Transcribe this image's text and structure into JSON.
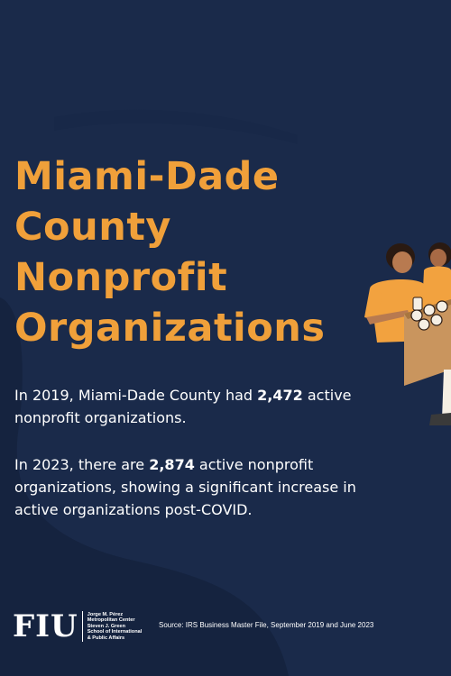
{
  "title": {
    "line1": "Miami-Dade",
    "line2": "County",
    "line3": "Nonprofit",
    "line4": "Organizations"
  },
  "paragraphs": {
    "p1_before": "In 2019, Miami-Dade County had ",
    "p1_value": "2,472",
    "p1_after": " active nonprofit organizations.",
    "p2_before": "In 2023, there are ",
    "p2_value": "2,874",
    "p2_after": " active nonprofit organizations, showing a significant increase in active organizations post-COVID."
  },
  "footer": {
    "logo_text": "FIU",
    "center_line1": "Jorge M. Pérez",
    "center_line2": "Metropolitan Center",
    "center_line3": "Steven J. Green",
    "center_line4": "School of International",
    "center_line5": "& Public Affairs",
    "source": "Source: IRS Business Master File, September 2019 and June 2023"
  },
  "colors": {
    "background": "#1a2a4a",
    "accent": "#f0a03a",
    "text": "#ffffff"
  }
}
